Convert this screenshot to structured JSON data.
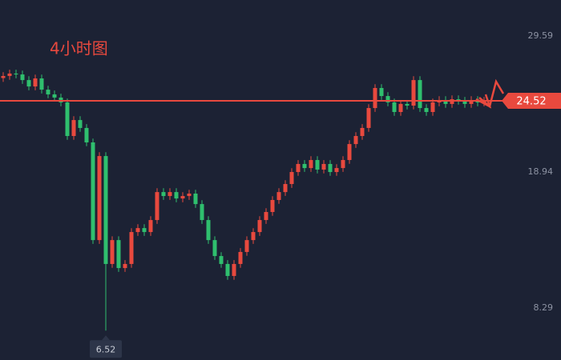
{
  "chart_data": {
    "type": "candlestick",
    "title": "4小时图",
    "up_color": "#e8493e",
    "down_color": "#2fbf6e",
    "last_price_color": "#e8493e",
    "ylim": [
      4.22,
      32.41
    ],
    "yticks": [
      29.59,
      18.94,
      8.29
    ],
    "last_price": 24.52,
    "low_marker": 6.52,
    "candles": [
      [
        26.3,
        26.76,
        26.0,
        26.46
      ],
      [
        26.46,
        26.95,
        26.16,
        26.65
      ],
      [
        26.65,
        26.95,
        26.28,
        26.58
      ],
      [
        26.58,
        26.88,
        25.84,
        26.14
      ],
      [
        26.14,
        26.44,
        25.34,
        25.64
      ],
      [
        25.64,
        26.57,
        25.34,
        26.27
      ],
      [
        26.27,
        26.57,
        25.09,
        25.39
      ],
      [
        25.39,
        25.69,
        24.72,
        25.02
      ],
      [
        25.02,
        25.32,
        24.47,
        24.77
      ],
      [
        24.77,
        25.07,
        24.09,
        24.39
      ],
      [
        24.39,
        24.69,
        21.46,
        21.76
      ],
      [
        21.76,
        23.31,
        21.46,
        23.01
      ],
      [
        23.01,
        23.31,
        22.09,
        22.39
      ],
      [
        22.39,
        22.69,
        20.96,
        21.26
      ],
      [
        21.26,
        21.56,
        13.31,
        13.61
      ],
      [
        13.61,
        20.49,
        13.31,
        20.19
      ],
      [
        20.19,
        20.49,
        6.52,
        11.74
      ],
      [
        11.74,
        13.91,
        11.44,
        13.61
      ],
      [
        13.61,
        13.91,
        11.12,
        11.42
      ],
      [
        11.42,
        12.04,
        11.12,
        11.74
      ],
      [
        11.74,
        14.54,
        11.44,
        14.24
      ],
      [
        14.24,
        14.85,
        13.94,
        14.55
      ],
      [
        14.55,
        14.85,
        13.94,
        14.24
      ],
      [
        14.24,
        15.48,
        13.94,
        15.18
      ],
      [
        15.18,
        17.67,
        14.88,
        17.37
      ],
      [
        17.37,
        17.67,
        16.76,
        17.06
      ],
      [
        17.06,
        17.67,
        16.76,
        17.37
      ],
      [
        17.37,
        17.67,
        16.57,
        16.87
      ],
      [
        16.87,
        17.36,
        16.57,
        17.06
      ],
      [
        17.06,
        17.55,
        16.76,
        17.25
      ],
      [
        17.25,
        17.55,
        16.13,
        16.43
      ],
      [
        16.43,
        16.73,
        14.88,
        15.18
      ],
      [
        15.18,
        15.48,
        13.31,
        13.61
      ],
      [
        13.61,
        13.91,
        12.06,
        12.36
      ],
      [
        12.36,
        12.66,
        11.44,
        11.74
      ],
      [
        11.74,
        12.04,
        10.5,
        10.8
      ],
      [
        10.8,
        12.04,
        10.5,
        11.74
      ],
      [
        11.74,
        12.98,
        11.44,
        12.68
      ],
      [
        12.68,
        13.91,
        12.38,
        13.61
      ],
      [
        13.61,
        14.54,
        13.31,
        14.24
      ],
      [
        14.24,
        15.48,
        13.94,
        15.18
      ],
      [
        15.18,
        16.11,
        14.88,
        15.81
      ],
      [
        15.81,
        17.05,
        15.51,
        16.75
      ],
      [
        16.75,
        17.67,
        16.45,
        17.37
      ],
      [
        17.37,
        18.3,
        17.07,
        18.0
      ],
      [
        18.0,
        19.24,
        17.7,
        18.94
      ],
      [
        18.94,
        19.87,
        18.64,
        19.57
      ],
      [
        19.57,
        19.87,
        18.95,
        19.25
      ],
      [
        19.25,
        20.18,
        18.95,
        19.88
      ],
      [
        19.88,
        20.18,
        18.83,
        19.13
      ],
      [
        19.13,
        19.87,
        18.83,
        19.57
      ],
      [
        19.57,
        19.87,
        18.64,
        18.94
      ],
      [
        18.94,
        19.55,
        18.64,
        19.25
      ],
      [
        19.25,
        20.18,
        18.95,
        19.88
      ],
      [
        19.88,
        21.43,
        19.58,
        21.13
      ],
      [
        21.13,
        22.06,
        20.83,
        21.76
      ],
      [
        21.76,
        22.69,
        21.46,
        22.39
      ],
      [
        22.39,
        24.25,
        22.09,
        23.95
      ],
      [
        23.95,
        25.82,
        23.65,
        25.52
      ],
      [
        25.52,
        25.82,
        24.59,
        24.89
      ],
      [
        24.89,
        25.19,
        24.09,
        24.39
      ],
      [
        24.39,
        24.69,
        23.34,
        23.64
      ],
      [
        23.64,
        24.57,
        23.34,
        24.27
      ],
      [
        24.27,
        24.57,
        23.84,
        24.14
      ],
      [
        24.14,
        26.44,
        23.84,
        26.14
      ],
      [
        26.14,
        26.44,
        23.65,
        23.95
      ],
      [
        23.95,
        24.25,
        23.34,
        23.64
      ],
      [
        23.64,
        24.69,
        23.34,
        24.39
      ],
      [
        24.39,
        24.88,
        24.09,
        24.58
      ],
      [
        24.58,
        24.88,
        23.97,
        24.27
      ],
      [
        24.27,
        24.94,
        23.97,
        24.64
      ],
      [
        24.64,
        24.94,
        24.22,
        24.52
      ],
      [
        24.52,
        24.82,
        23.97,
        24.27
      ],
      [
        24.27,
        24.88,
        23.97,
        24.58
      ],
      [
        24.58,
        24.88,
        24.09,
        24.39
      ],
      [
        24.39,
        24.82,
        24.09,
        24.52
      ]
    ]
  }
}
